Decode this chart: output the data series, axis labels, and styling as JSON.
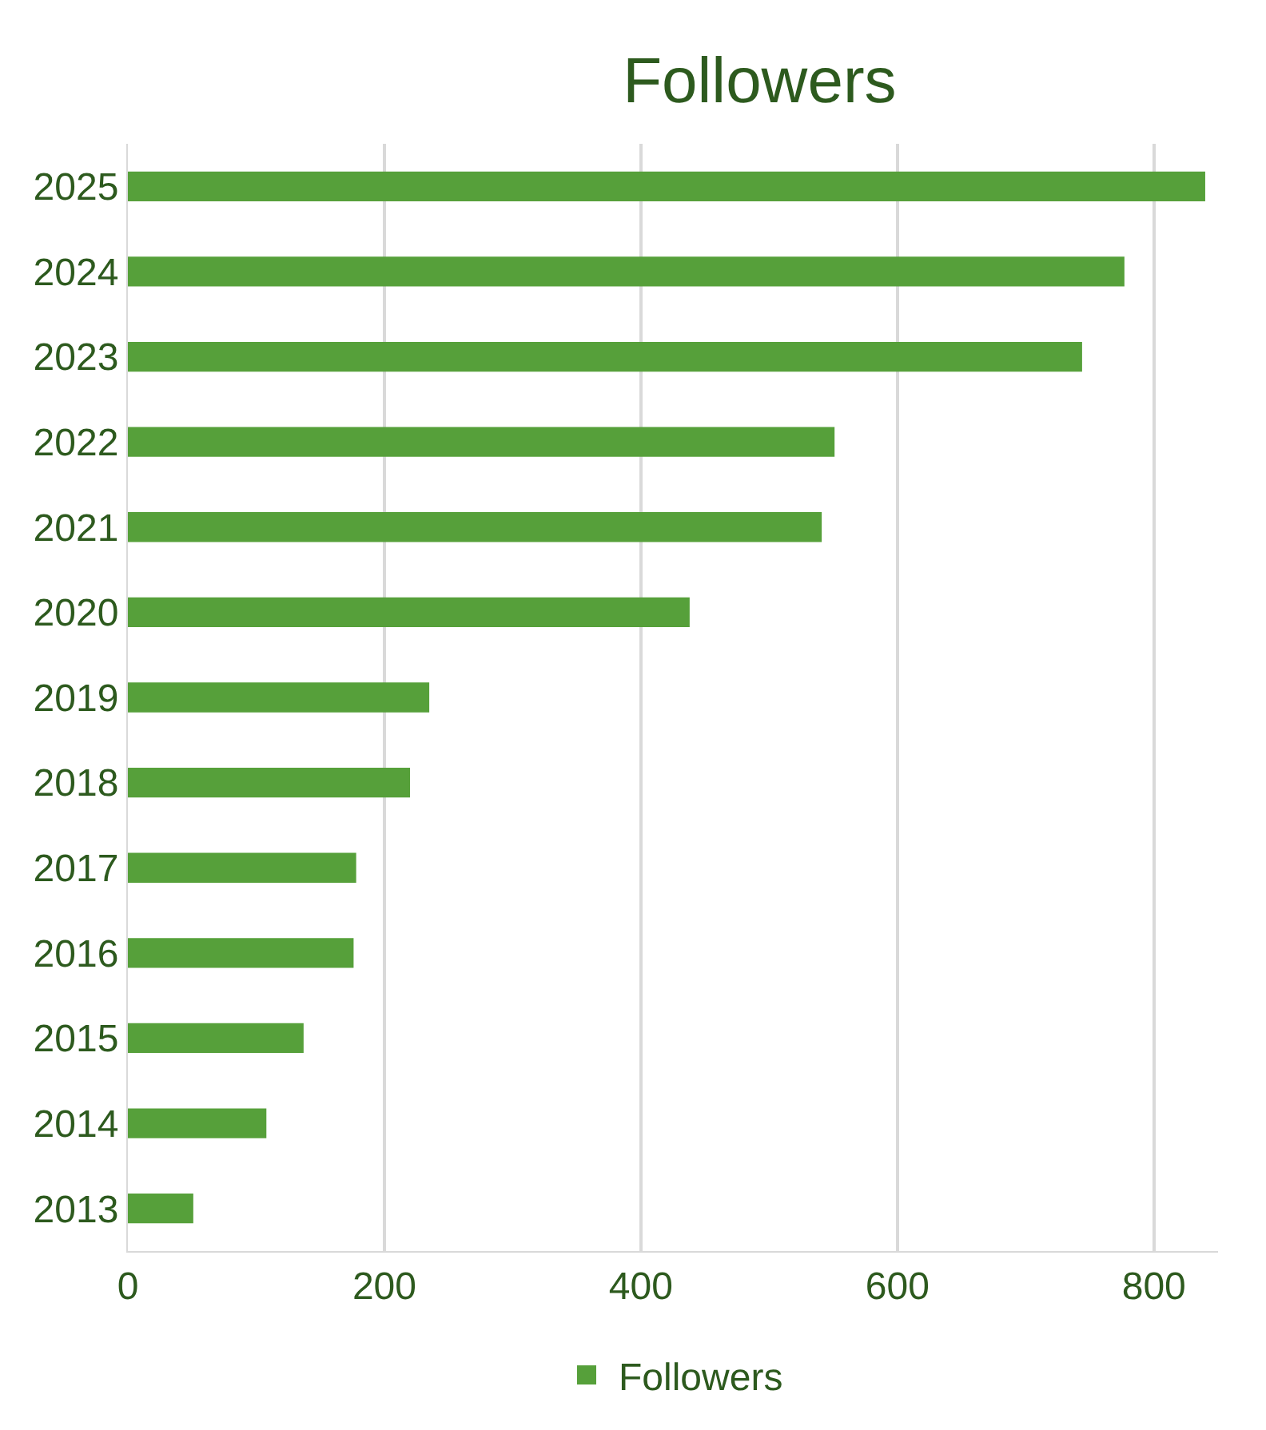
{
  "chart_data": {
    "type": "bar",
    "title": "Followers",
    "orientation": "horizontal",
    "categories": [
      "2025",
      "2024",
      "2023",
      "2022",
      "2021",
      "2020",
      "2019",
      "2018",
      "2017",
      "2016",
      "2015",
      "2014",
      "2013"
    ],
    "series": [
      {
        "name": "Followers",
        "color": "#56a03a",
        "values": [
          840,
          777,
          744,
          551,
          541,
          438,
          235,
          220,
          178,
          176,
          137,
          108,
          51
        ]
      }
    ],
    "xlim": [
      0,
      850
    ],
    "xticks": [
      0,
      200,
      400,
      600,
      800
    ],
    "grid": "x",
    "legend": "bottom"
  }
}
